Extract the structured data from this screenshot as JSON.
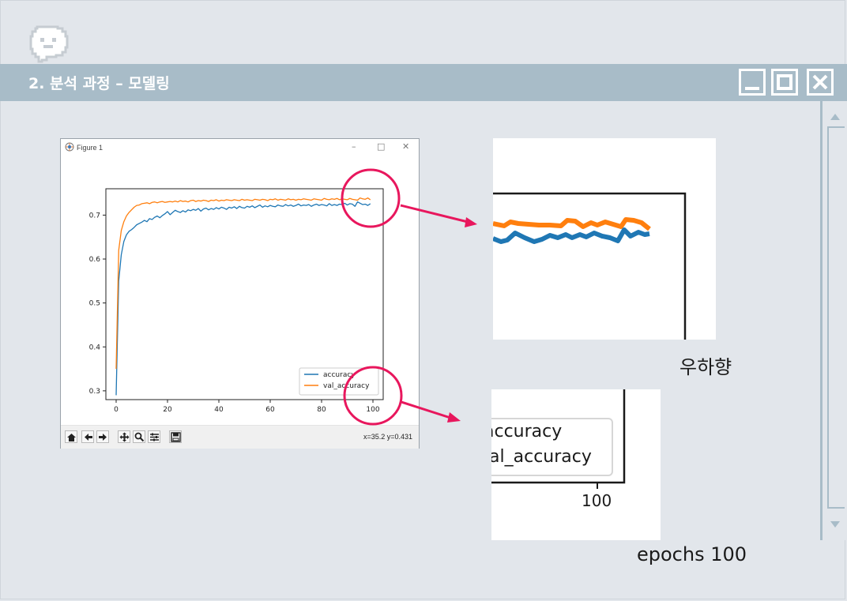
{
  "slide": {
    "title": "2. 분석 과정 – 모델링",
    "title_bar_color": "#a8bcc8",
    "background_color": "#e2e6eb",
    "icons": [
      "speech-bubble-icon",
      "minimize-icon",
      "maximize-icon",
      "close-icon"
    ]
  },
  "figure_window": {
    "title": "Figure 1",
    "controls": [
      "–",
      "□",
      "✕"
    ],
    "coord_readout": "x=35.2 y=0.431",
    "toolbar_icons": [
      "home-icon",
      "back-icon",
      "forward-icon",
      "pan-icon",
      "zoom-icon",
      "subplots-icon",
      "save-icon"
    ]
  },
  "chart_data": {
    "type": "line",
    "x_ticks": [
      "0",
      "20",
      "40",
      "60",
      "80",
      "100"
    ],
    "y_ticks": [
      "0.3",
      "0.4",
      "0.5",
      "0.6",
      "0.7"
    ],
    "xlim": [
      -4,
      104
    ],
    "ylim": [
      0.28,
      0.76
    ],
    "legend": {
      "position": "lower right",
      "entries": [
        "accuracy",
        "val_accuracy"
      ]
    },
    "series": [
      {
        "name": "accuracy",
        "color": "#1f77b4",
        "x": [
          0,
          1,
          2,
          3,
          4,
          5,
          6,
          7,
          8,
          9,
          10,
          11,
          12,
          13,
          14,
          15,
          16,
          17,
          18,
          19,
          20,
          21,
          22,
          23,
          24,
          25,
          26,
          27,
          28,
          29,
          30,
          31,
          32,
          33,
          34,
          35,
          36,
          37,
          38,
          39,
          40,
          41,
          42,
          43,
          44,
          45,
          46,
          47,
          48,
          49,
          50,
          51,
          52,
          53,
          54,
          55,
          56,
          57,
          58,
          59,
          60,
          61,
          62,
          63,
          64,
          65,
          66,
          67,
          68,
          69,
          70,
          71,
          72,
          73,
          74,
          75,
          76,
          77,
          78,
          79,
          80,
          81,
          82,
          83,
          84,
          85,
          86,
          87,
          88,
          89,
          90,
          91,
          92,
          93,
          94,
          95,
          96,
          97,
          98,
          99
        ],
        "values": [
          0.29,
          0.55,
          0.61,
          0.64,
          0.655,
          0.663,
          0.667,
          0.672,
          0.678,
          0.681,
          0.684,
          0.688,
          0.685,
          0.692,
          0.69,
          0.695,
          0.698,
          0.694,
          0.699,
          0.703,
          0.708,
          0.701,
          0.706,
          0.711,
          0.708,
          0.706,
          0.71,
          0.707,
          0.712,
          0.71,
          0.713,
          0.711,
          0.715,
          0.709,
          0.714,
          0.716,
          0.712,
          0.715,
          0.713,
          0.717,
          0.714,
          0.718,
          0.716,
          0.713,
          0.718,
          0.716,
          0.719,
          0.715,
          0.72,
          0.717,
          0.716,
          0.72,
          0.718,
          0.721,
          0.717,
          0.72,
          0.723,
          0.718,
          0.721,
          0.719,
          0.722,
          0.72,
          0.719,
          0.723,
          0.721,
          0.72,
          0.724,
          0.721,
          0.723,
          0.72,
          0.722,
          0.725,
          0.721,
          0.723,
          0.722,
          0.724,
          0.72,
          0.723,
          0.725,
          0.722,
          0.724,
          0.723,
          0.721,
          0.726,
          0.722,
          0.724,
          0.722,
          0.725,
          0.724,
          0.727,
          0.723,
          0.726,
          0.725,
          0.72,
          0.73,
          0.727,
          0.724,
          0.725,
          0.722,
          0.726
        ],
        "start": 0
      },
      {
        "name": "val_accuracy",
        "color": "#ff7f0e",
        "x": [
          0,
          1,
          2,
          3,
          4,
          5,
          6,
          7,
          8,
          9,
          10,
          11,
          12,
          13,
          14,
          15,
          16,
          17,
          18,
          19,
          20,
          21,
          22,
          23,
          24,
          25,
          26,
          27,
          28,
          29,
          30,
          31,
          32,
          33,
          34,
          35,
          36,
          37,
          38,
          39,
          40,
          41,
          42,
          43,
          44,
          45,
          46,
          47,
          48,
          49,
          50,
          51,
          52,
          53,
          54,
          55,
          56,
          57,
          58,
          59,
          60,
          61,
          62,
          63,
          64,
          65,
          66,
          67,
          68,
          69,
          70,
          71,
          72,
          73,
          74,
          75,
          76,
          77,
          78,
          79,
          80,
          81,
          82,
          83,
          84,
          85,
          86,
          87,
          88,
          89,
          90,
          91,
          92,
          93,
          94,
          95,
          96,
          97,
          98,
          99
        ],
        "values": [
          0.35,
          0.62,
          0.665,
          0.685,
          0.698,
          0.706,
          0.712,
          0.718,
          0.722,
          0.723,
          0.726,
          0.727,
          0.728,
          0.726,
          0.729,
          0.73,
          0.728,
          0.73,
          0.731,
          0.729,
          0.73,
          0.731,
          0.73,
          0.732,
          0.73,
          0.733,
          0.731,
          0.732,
          0.73,
          0.733,
          0.734,
          0.731,
          0.733,
          0.732,
          0.734,
          0.733,
          0.731,
          0.734,
          0.733,
          0.735,
          0.732,
          0.734,
          0.733,
          0.735,
          0.734,
          0.733,
          0.735,
          0.734,
          0.733,
          0.736,
          0.734,
          0.735,
          0.734,
          0.733,
          0.736,
          0.735,
          0.734,
          0.736,
          0.735,
          0.733,
          0.736,
          0.735,
          0.737,
          0.734,
          0.736,
          0.735,
          0.734,
          0.737,
          0.735,
          0.736,
          0.734,
          0.736,
          0.735,
          0.737,
          0.736,
          0.735,
          0.734,
          0.737,
          0.736,
          0.735,
          0.734,
          0.738,
          0.736,
          0.735,
          0.737,
          0.736,
          0.738,
          0.735,
          0.737,
          0.736,
          0.735,
          0.738,
          0.736,
          0.735,
          0.734,
          0.739,
          0.737,
          0.736,
          0.739,
          0.735
        ]
      }
    ]
  },
  "zoom_top_right": {
    "caption": "우하향"
  },
  "zoom_bottom_right": {
    "legend_entries": [
      "accuracy",
      "val_accuracy"
    ],
    "tick_label": "100",
    "caption": "epochs 100"
  },
  "annotation_color": "#e8175d"
}
